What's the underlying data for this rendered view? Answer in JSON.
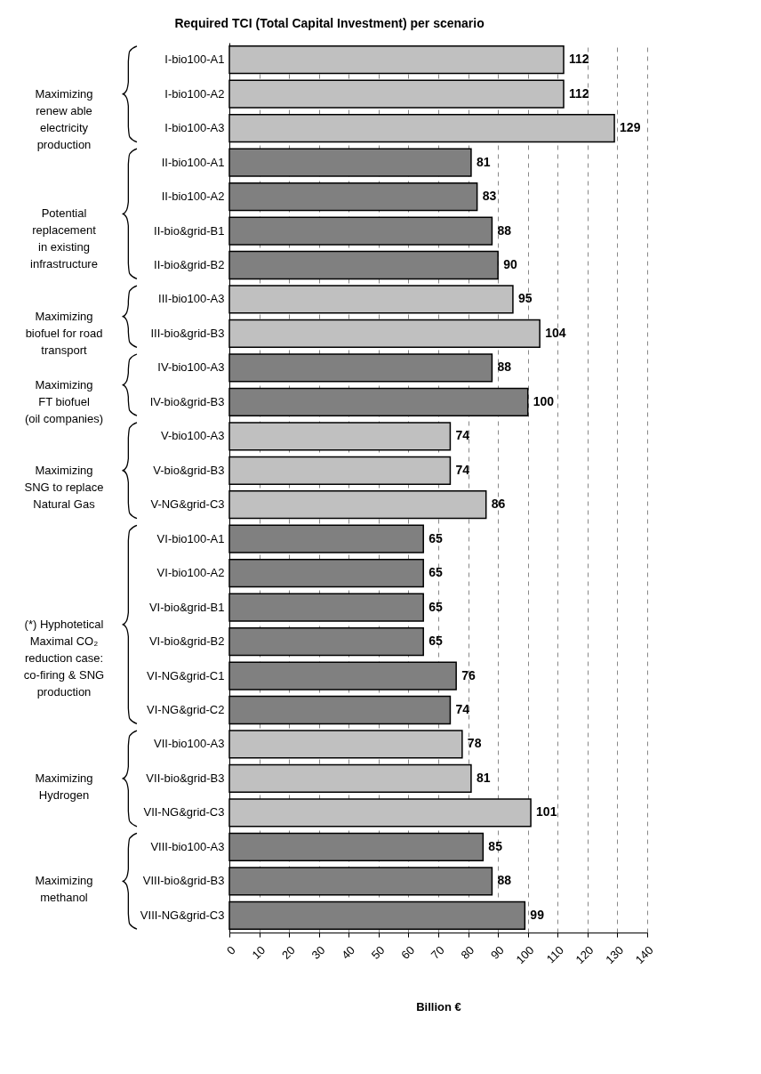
{
  "chart_data": {
    "type": "bar",
    "orientation": "horizontal",
    "title": "Required TCI (Total Capital Investment) per scenario",
    "xlabel": "Billion €",
    "categories": [
      "I-bio100-A1",
      "I-bio100-A2",
      "I-bio100-A3",
      "II-bio100-A1",
      "II-bio100-A2",
      "II-bio&grid-B1",
      "II-bio&grid-B2",
      "III-bio100-A3",
      "III-bio&grid-B3",
      "IV-bio100-A3",
      "IV-bio&grid-B3",
      "V-bio100-A3",
      "V-bio&grid-B3",
      "V-NG&grid-C3",
      "VI-bio100-A1",
      "VI-bio100-A2",
      "VI-bio&grid-B1",
      "VI-bio&grid-B2",
      "VI-NG&grid-C1",
      "VI-NG&grid-C2",
      "VII-bio100-A3",
      "VII-bio&grid-B3",
      "VII-NG&grid-C3",
      "VIII-bio100-A3",
      "VIII-bio&grid-B3",
      "VIII-NG&grid-C3"
    ],
    "values": [
      112,
      112,
      129,
      81,
      83,
      88,
      90,
      95,
      104,
      88,
      100,
      74,
      74,
      86,
      65,
      65,
      65,
      65,
      76,
      74,
      78,
      81,
      101,
      85,
      88,
      99
    ],
    "colors": [
      "#c0c0c0",
      "#c0c0c0",
      "#c0c0c0",
      "#808080",
      "#808080",
      "#808080",
      "#808080",
      "#c0c0c0",
      "#c0c0c0",
      "#808080",
      "#808080",
      "#c0c0c0",
      "#c0c0c0",
      "#c0c0c0",
      "#808080",
      "#808080",
      "#808080",
      "#808080",
      "#808080",
      "#808080",
      "#c0c0c0",
      "#c0c0c0",
      "#c0c0c0",
      "#808080",
      "#808080",
      "#808080"
    ],
    "data_labels": true,
    "xlim": [
      0,
      140
    ],
    "xticks": [
      0,
      10,
      20,
      30,
      40,
      50,
      60,
      70,
      80,
      90,
      100,
      110,
      120,
      130,
      140
    ],
    "grid": "x",
    "annotations": [
      "Maximizing\nrenew able\nelectricity\nproduction",
      "Potential\nreplacement\nin existing\ninfrastructure",
      "Maximizing\nbiofuel for road\ntransport",
      "Maximizing\nFT biofuel\n(oil companies)",
      "Maximizing\nSNG to replace\nNatural Gas",
      "(*) Hyphotetical\nMaximal CO₂\nreduction case:\nco-firing & SNG\nproduction",
      "Maximizing\nHydrogen",
      "Maximizing\nmethanol"
    ]
  }
}
